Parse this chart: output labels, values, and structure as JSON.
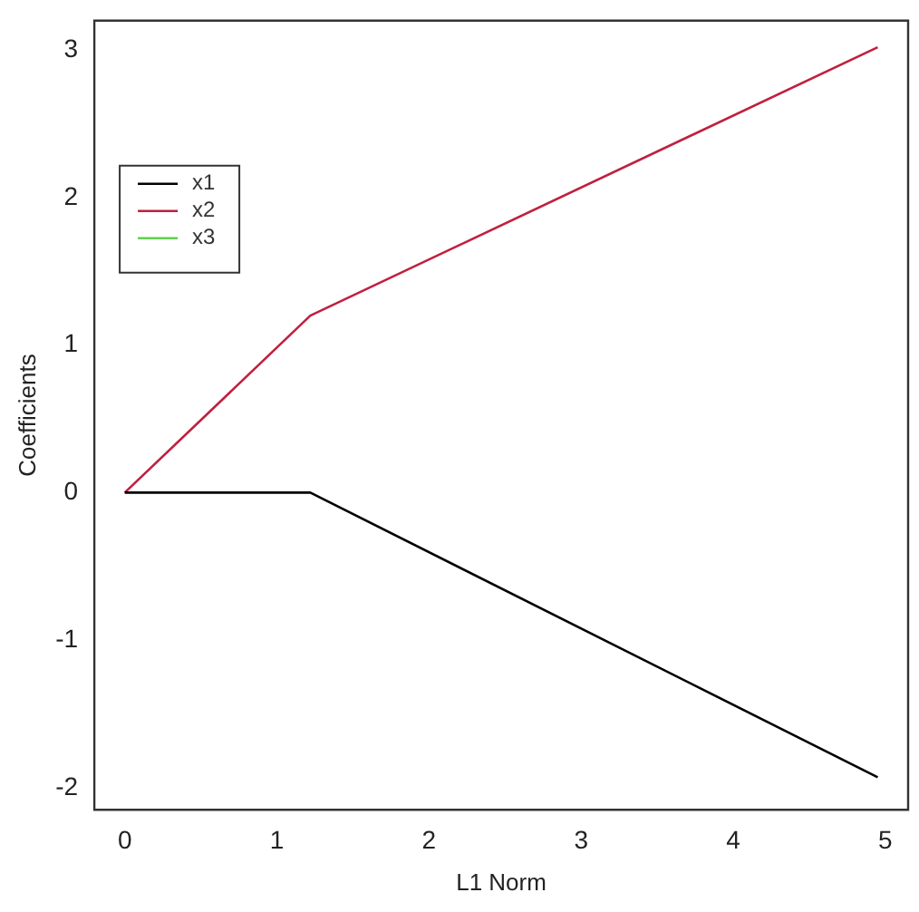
{
  "chart_data": {
    "type": "line",
    "xlabel": "L1 Norm",
    "ylabel": "Coefficients",
    "xlim": [
      -0.2,
      5.15
    ],
    "ylim": [
      -2.15,
      3.2
    ],
    "xticks": [
      0,
      1,
      2,
      3,
      4,
      5
    ],
    "yticks": [
      -2,
      -1,
      0,
      1,
      2,
      3
    ],
    "x": [
      0,
      1.22,
      4.95
    ],
    "series": [
      {
        "name": "x1",
        "color": "#000000",
        "values": [
          0,
          0,
          -1.93
        ]
      },
      {
        "name": "x2",
        "color": "#c0203f",
        "values": [
          0,
          1.2,
          3.02
        ]
      },
      {
        "name": "x3",
        "color": "#61d04f",
        "values": [
          null,
          null,
          null
        ]
      }
    ],
    "legend": "top left",
    "grid": false,
    "marker": "none",
    "line_style": "solid"
  }
}
